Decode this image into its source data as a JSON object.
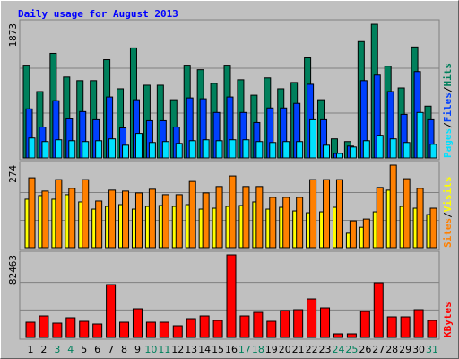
{
  "chart_data": [
    {
      "type": "bar",
      "title": "Daily usage for August 2013",
      "ylim": [
        0,
        1873
      ],
      "yticks": [
        1873
      ],
      "grid_lines": [
        624,
        1249
      ],
      "legend_separator": "/",
      "series": [
        {
          "name": "Hits",
          "color": "#00805c",
          "values": [
            1291,
            924,
            1455,
            1126,
            1076,
            1076,
            1367,
            962,
            1531,
            1012,
            1012,
            810,
            1291,
            1228,
            1038,
            1291,
            1088,
            873,
            1114,
            962,
            1050,
            1392,
            810,
            266,
            228,
            1620,
            1860,
            1278,
            974,
            1544,
            721
          ]
        },
        {
          "name": "Files",
          "color": "#0040ff",
          "values": [
            683,
            430,
            797,
            544,
            645,
            532,
            848,
            418,
            810,
            519,
            519,
            430,
            835,
            823,
            633,
            848,
            633,
            494,
            696,
            696,
            759,
            1025,
            532,
            63,
            165,
            1076,
            1152,
            924,
            607,
            1202,
            532
          ]
        },
        {
          "name": "Pages",
          "color": "#00e0ff",
          "values": [
            278,
            228,
            253,
            240,
            228,
            240,
            266,
            177,
            342,
            215,
            228,
            202,
            240,
            253,
            240,
            253,
            253,
            228,
            215,
            228,
            228,
            532,
            177,
            63,
            152,
            240,
            316,
            266,
            215,
            633,
            190
          ]
        }
      ]
    },
    {
      "type": "bar",
      "ylim": [
        0,
        274
      ],
      "yticks": [
        274
      ],
      "grid_lines": [
        91,
        183
      ],
      "legend_separator": "/",
      "series": [
        {
          "name": "Visits",
          "color": "#ffff00",
          "values": [
            161,
            173,
            161,
            176,
            152,
            128,
            137,
            143,
            128,
            137,
            140,
            137,
            143,
            128,
            131,
            137,
            140,
            152,
            128,
            134,
            122,
            116,
            119,
            134,
            48,
            68,
            119,
            191,
            137,
            131,
            110
          ]
        },
        {
          "name": "Sites",
          "color": "#ff8000",
          "values": [
            232,
            188,
            226,
            197,
            226,
            155,
            191,
            188,
            182,
            194,
            176,
            176,
            220,
            182,
            203,
            238,
            203,
            203,
            167,
            167,
            167,
            226,
            226,
            226,
            89,
            95,
            200,
            274,
            229,
            197,
            131
          ]
        }
      ]
    },
    {
      "type": "bar",
      "ylim": [
        0,
        82463
      ],
      "yticks": [
        82463
      ],
      "grid_lines": [
        27488,
        54975
      ],
      "categories": [
        "1",
        "2",
        "3",
        "4",
        "5",
        "6",
        "7",
        "8",
        "9",
        "10",
        "11",
        "12",
        "13",
        "14",
        "15",
        "16",
        "17",
        "18",
        "19",
        "20",
        "21",
        "22",
        "23",
        "24",
        "25",
        "26",
        "27",
        "28",
        "29",
        "30",
        "31"
      ],
      "category_colors": [
        "#000000",
        "#000000",
        "#00805c",
        "#00805c",
        "#000000",
        "#000000",
        "#000000",
        "#000000",
        "#000000",
        "#00805c",
        "#00805c",
        "#000000",
        "#000000",
        "#000000",
        "#000000",
        "#000000",
        "#00805c",
        "#00805c",
        "#000000",
        "#000000",
        "#000000",
        "#000000",
        "#000000",
        "#00805c",
        "#00805c",
        "#000000",
        "#000000",
        "#000000",
        "#000000",
        "#000000",
        "#00805c"
      ],
      "series": [
        {
          "name": "KBytes",
          "color": "#ff0000",
          "values": [
            15232,
            21504,
            14336,
            19712,
            16128,
            13440,
            52864,
            15232,
            28672,
            15232,
            15232,
            11648,
            18816,
            21504,
            17024,
            82463,
            21504,
            25088,
            16128,
            26880,
            27776,
            38528,
            29568,
            3584,
            3584,
            25984,
            54656,
            20608,
            20608,
            27776,
            17024
          ]
        }
      ]
    }
  ]
}
